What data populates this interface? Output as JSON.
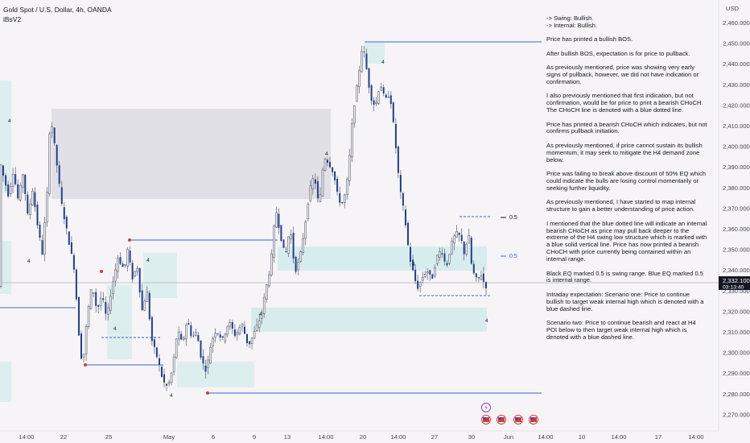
{
  "header": {
    "title": "Gold Spot / U.S. Dollar, 4h, OANDA",
    "indicator": "iBsV2"
  },
  "notes": [
    "-> Swing:  Bullish.",
    "-> Internal:  Bullish.",
    "Price has printed a bullish BOS.",
    "After bullish BOS, expectation is for price to pullback.",
    "As previously mentioned, price was showing very early signs of pullback, however, we did not have indication or confirmation.",
    "I also previously mentioned that first indication, but not confirmation, would be for price to print a bearish CHoCH.  The CHoCH line is denoted with a blue dotted line.",
    "Price has printed a bearish CHoCH which indicates, but not confirms pullback initiation.",
    "As previously mentioned, if price cannot sustain its bullish momentum, it may seek to mitigate the H4 demand zone below.",
    "Price was failing to break above discount of 50% EQ which could indicate the bulls are losing control momentarily or seeking further liquidity.",
    "As previously mentioned, I have started to map internal structure to gain a better understanding of price action.",
    "I mentioned that the blue dotted line will indicate an internal bearish CHoCH as price may pull back deeper to the extreme of the H4 swing low structure which is marked with a blue solid vertical line.   Price has now printed a bearish CHoCH with price currently being contained within an internal range.",
    "Black EQ marked 0.5 is swing range.  Blue EQ marked 0.5 is internal range.",
    "Intraday expectation: Scenario one:  Price to continue bullish to target weak internal high which is denoted with a blue dashed line.",
    "Scenario two: Price to continue bearish and react at H4 POI below to then target weak internal high which is denoted with a blue dashed line."
  ],
  "price_axis": {
    "currency": "USD",
    "last_price": "2,332.100",
    "countdown": "03:13:40"
  },
  "colors": {
    "candle": "#1f3f8f",
    "wick": "#5b6070",
    "bos_line": "#3a66d4",
    "zone_gray": "#e1e0e6",
    "zone_teal": "#d7ecec",
    "label_bg": "#131722",
    "pivot": "#d23b3b",
    "eq_blue": "#3a66d4",
    "eq_black": "#131722"
  },
  "chart_data": {
    "type": "candlestick",
    "title": "Gold Spot / U.S. Dollar, 4h, OANDA",
    "y_unit": "USD",
    "ylim": [
      2265,
      2465
    ],
    "y_ticks": [
      2270,
      2280,
      2290,
      2300,
      2310,
      2320,
      2330,
      2340,
      2350,
      2360,
      2370,
      2380,
      2390,
      2400,
      2410,
      2420,
      2430,
      2440,
      2450,
      2460
    ],
    "y_tick_labels": [
      "2,270.000",
      "2,280.000",
      "2,290.000",
      "2,300.000",
      "2,310.000",
      "2,320.000",
      "2,330.000",
      "2,340.000",
      "2,350.000",
      "2,360.000",
      "2,370.000",
      "2,380.000",
      "2,390.000",
      "2,400.000",
      "2,410.000",
      "2,420.000",
      "2,430.000",
      "2,440.000",
      "2,450.000",
      "2,460.000"
    ],
    "x_tick_labels": [
      "14:00",
      "22",
      "25",
      "May",
      "6",
      "9",
      "13",
      "14:00",
      "20",
      "14:00",
      "27",
      "30",
      "Jun",
      "14:00",
      "10",
      "14:00",
      "17",
      "14:00"
    ],
    "last_price": 2332.1,
    "price_path": [
      [
        0,
        2395
      ],
      [
        6,
        2385
      ],
      [
        12,
        2376
      ],
      [
        18,
        2388
      ],
      [
        24,
        2374
      ],
      [
        30,
        2387
      ],
      [
        36,
        2366
      ],
      [
        42,
        2379
      ],
      [
        48,
        2362
      ],
      [
        54,
        2348
      ],
      [
        60,
        2376
      ],
      [
        64,
        2416
      ],
      [
        70,
        2398
      ],
      [
        78,
        2372
      ],
      [
        86,
        2356
      ],
      [
        94,
        2340
      ],
      [
        100,
        2306
      ],
      [
        104,
        2293
      ],
      [
        110,
        2318
      ],
      [
        116,
        2333
      ],
      [
        122,
        2320
      ],
      [
        128,
        2328
      ],
      [
        134,
        2316
      ],
      [
        140,
        2331
      ],
      [
        148,
        2346
      ],
      [
        156,
        2340
      ],
      [
        160,
        2350
      ],
      [
        166,
        2336
      ],
      [
        172,
        2342
      ],
      [
        178,
        2320
      ],
      [
        184,
        2330
      ],
      [
        190,
        2306
      ],
      [
        198,
        2296
      ],
      [
        204,
        2286
      ],
      [
        210,
        2283
      ],
      [
        216,
        2292
      ],
      [
        222,
        2311
      ],
      [
        228,
        2304
      ],
      [
        234,
        2316
      ],
      [
        240,
        2307
      ],
      [
        246,
        2310
      ],
      [
        252,
        2296
      ],
      [
        258,
        2291
      ],
      [
        264,
        2305
      ],
      [
        270,
        2311
      ],
      [
        278,
        2306
      ],
      [
        286,
        2315
      ],
      [
        294,
        2308
      ],
      [
        302,
        2314
      ],
      [
        310,
        2303
      ],
      [
        318,
        2310
      ],
      [
        326,
        2318
      ],
      [
        332,
        2331
      ],
      [
        338,
        2343
      ],
      [
        344,
        2370
      ],
      [
        350,
        2357
      ],
      [
        356,
        2346
      ],
      [
        362,
        2361
      ],
      [
        368,
        2339
      ],
      [
        374,
        2345
      ],
      [
        380,
        2360
      ],
      [
        386,
        2378
      ],
      [
        392,
        2386
      ],
      [
        398,
        2370
      ],
      [
        404,
        2395
      ],
      [
        410,
        2392
      ],
      [
        416,
        2387
      ],
      [
        422,
        2374
      ],
      [
        428,
        2372
      ],
      [
        434,
        2386
      ],
      [
        440,
        2416
      ],
      [
        446,
        2431
      ],
      [
        452,
        2450
      ],
      [
        456,
        2440
      ],
      [
        462,
        2424
      ],
      [
        468,
        2419
      ],
      [
        474,
        2431
      ],
      [
        480,
        2422
      ],
      [
        486,
        2426
      ],
      [
        492,
        2405
      ],
      [
        498,
        2380
      ],
      [
        504,
        2367
      ],
      [
        510,
        2347
      ],
      [
        516,
        2337
      ],
      [
        520,
        2331
      ],
      [
        526,
        2336
      ],
      [
        532,
        2340
      ],
      [
        538,
        2335
      ],
      [
        544,
        2346
      ],
      [
        550,
        2350
      ],
      [
        556,
        2341
      ],
      [
        562,
        2352
      ],
      [
        568,
        2358
      ],
      [
        574,
        2356
      ],
      [
        578,
        2348
      ],
      [
        584,
        2357
      ],
      [
        588,
        2340
      ],
      [
        594,
        2335
      ],
      [
        600,
        2338
      ],
      [
        604,
        2332
      ]
    ],
    "levels": [
      {
        "name": "bullish-bos-high",
        "price": 2450
      },
      {
        "name": "weak-internal-high",
        "price": 2363.5
      },
      {
        "name": "swing-eq-0.5",
        "label": "0.5",
        "price": 2360
      },
      {
        "name": "internal-eq-0.5",
        "label": "0.5",
        "price": 2342
      },
      {
        "name": "internal-choch",
        "price": 2328
      },
      {
        "name": "swing-low",
        "price": 2278
      }
    ],
    "structure_labels": [
      "4",
      "4",
      "4",
      "4",
      "4",
      "4",
      "4",
      "4",
      "4",
      "4",
      "4",
      "4"
    ]
  }
}
